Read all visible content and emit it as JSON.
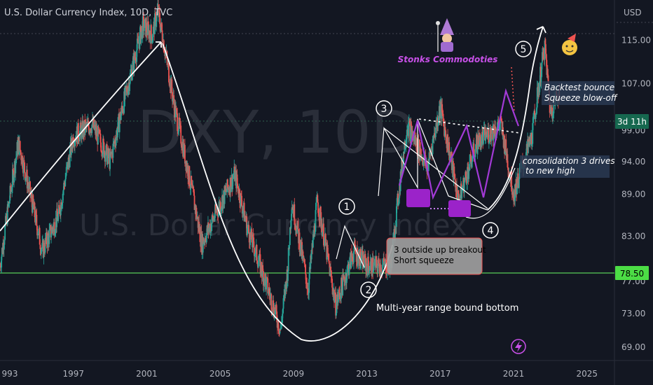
{
  "header": {
    "title": "U.S. Dollar Currency Index, 10D, TVC",
    "currency": "USD"
  },
  "watermark": {
    "symbol": "DXY, 10D",
    "name": "U.S. Dollar Currency Index"
  },
  "branding": {
    "author": "Stonks Commodoties"
  },
  "colors": {
    "background": "#131722",
    "up": "#26a69a",
    "down": "#ef5350",
    "support": "#4caf50",
    "pattern": "#a23ad6",
    "annotation": "#ffffff"
  },
  "price_labels": {
    "support_level": "78.50",
    "countdown": "3d 11h"
  },
  "annotations": {
    "wave_labels": [
      "1",
      "2",
      "3",
      "4",
      "5"
    ],
    "box_breakout_line1": "3 outside up breakout",
    "box_breakout_line2": "Short squeeze",
    "range_bottom": "Multi-year range bound bottom",
    "consolidation_line1": "consolidation 3 drives",
    "consolidation_line2": "to new high",
    "backtest_line1": "Backtest  bounce",
    "backtest_line2": "Squeeze blow-off"
  },
  "chart_data": {
    "type": "candlestick",
    "title": "U.S. Dollar Currency Index, 10D, TVC",
    "x_ticks": [
      "993",
      "1997",
      "2001",
      "2005",
      "2009",
      "2013",
      "2017",
      "2021",
      "2025"
    ],
    "y_ticks": [
      "115.00",
      "107.00",
      "99.00",
      "94.00",
      "89.00",
      "83.00",
      "77.00",
      "73.00",
      "69.00"
    ],
    "y_unit": "USD",
    "xlim": [
      1993,
      2026.5
    ],
    "ylim": [
      67.5,
      123
    ],
    "y_scale": "log",
    "horizontal_levels": [
      {
        "value": 78.5,
        "label": "78.50"
      }
    ],
    "pivots": [
      {
        "x": 1993.0,
        "y": 79
      },
      {
        "x": 1994.0,
        "y": 97
      },
      {
        "x": 1995.3,
        "y": 81
      },
      {
        "x": 1996.2,
        "y": 86
      },
      {
        "x": 1997.0,
        "y": 98
      },
      {
        "x": 1998.0,
        "y": 100
      },
      {
        "x": 1999.0,
        "y": 94
      },
      {
        "x": 2000.0,
        "y": 107
      },
      {
        "x": 2000.8,
        "y": 118
      },
      {
        "x": 2001.3,
        "y": 116
      },
      {
        "x": 2001.6,
        "y": 121
      },
      {
        "x": 2002.5,
        "y": 103
      },
      {
        "x": 2003.5,
        "y": 89
      },
      {
        "x": 2004.0,
        "y": 82
      },
      {
        "x": 2005.8,
        "y": 92
      },
      {
        "x": 2006.5,
        "y": 84
      },
      {
        "x": 2008.3,
        "y": 71
      },
      {
        "x": 2008.7,
        "y": 79
      },
      {
        "x": 2008.9,
        "y": 88
      },
      {
        "x": 2009.8,
        "y": 76
      },
      {
        "x": 2010.3,
        "y": 88
      },
      {
        "x": 2011.3,
        "y": 74
      },
      {
        "x": 2012.3,
        "y": 81
      },
      {
        "x": 2013.0,
        "y": 79
      },
      {
        "x": 2014.3,
        "y": 79
      },
      {
        "x": 2015.2,
        "y": 100
      },
      {
        "x": 2016.3,
        "y": 93
      },
      {
        "x": 2017.0,
        "y": 103
      },
      {
        "x": 2018.0,
        "y": 88
      },
      {
        "x": 2019.0,
        "y": 97
      },
      {
        "x": 2020.3,
        "y": 100
      },
      {
        "x": 2021.0,
        "y": 89
      },
      {
        "x": 2022.0,
        "y": 98
      },
      {
        "x": 2022.7,
        "y": 114
      },
      {
        "x": 2023.0,
        "y": 102
      },
      {
        "x": 2023.5,
        "y": 106
      }
    ]
  }
}
